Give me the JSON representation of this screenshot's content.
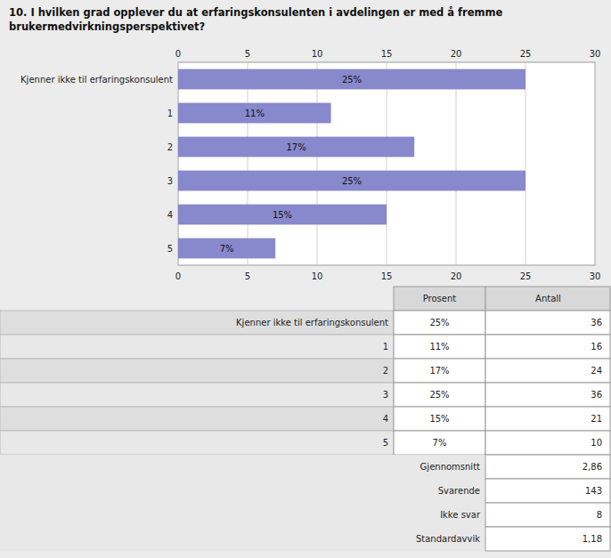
{
  "chart_data": {
    "type": "bar",
    "orientation": "horizontal",
    "title": "10. I hvilken grad opplever du at erfaringskonsulenten i avdelingen er med å fremme\nbrukermedvirkningsperspektivet?",
    "categories": [
      "Kjenner ikke til erfaringskonsulent",
      "1",
      "2",
      "3",
      "4",
      "5"
    ],
    "values": [
      25,
      11,
      17,
      25,
      15,
      7
    ],
    "value_labels": [
      "25%",
      "11%",
      "17%",
      "25%",
      "15%",
      "7%"
    ],
    "data_labels": true,
    "color": "#8888cc",
    "xlim": [
      0,
      30
    ],
    "xticks": [
      0,
      5,
      10,
      15,
      20,
      25,
      30
    ],
    "grid": true,
    "table": {
      "columns": [
        "Prosent",
        "Antall"
      ],
      "rows": [
        {
          "label": "Kjenner ikke til erfaringskonsulent",
          "percent": 25,
          "percent_label": "25%",
          "count": 36
        },
        {
          "label": "1",
          "percent": 11,
          "percent_label": "11%",
          "count": 16
        },
        {
          "label": "2",
          "percent": 17,
          "percent_label": "17%",
          "count": 24
        },
        {
          "label": "3",
          "percent": 25,
          "percent_label": "25%",
          "count": 36
        },
        {
          "label": "4",
          "percent": 15,
          "percent_label": "15%",
          "count": 21
        },
        {
          "label": "5",
          "percent": 7,
          "percent_label": "7%",
          "count": 10
        }
      ],
      "stats": [
        {
          "label": "Gjennomsnitt",
          "value": 2.86,
          "value_label": "2,86"
        },
        {
          "label": "Svarende",
          "value": 143,
          "value_label": "143"
        },
        {
          "label": "Ikke svar",
          "value": 8,
          "value_label": "8"
        },
        {
          "label": "Standardavvik",
          "value": 1.18,
          "value_label": "1,18"
        }
      ]
    }
  }
}
